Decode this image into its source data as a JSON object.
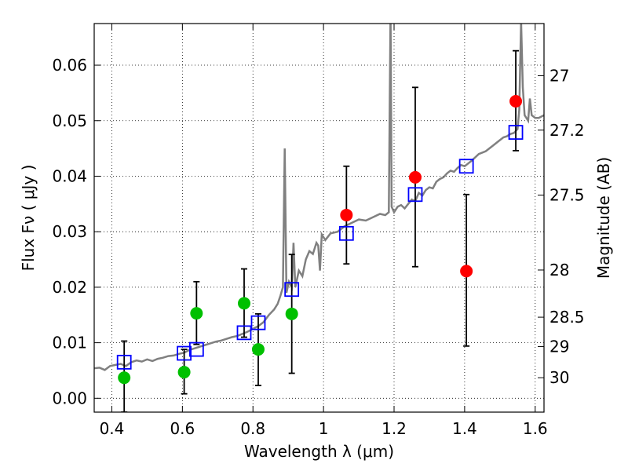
{
  "chart_data": {
    "type": "scatter",
    "xlabel": "Wavelength  λ (μm)",
    "ylabel_left": "Flux  Fν  ( μJy )",
    "ylabel_right": "Magnitude (AB)",
    "xlim": [
      0.35,
      1.625
    ],
    "ylim": [
      -0.0025,
      0.0675
    ],
    "x_ticks": [
      0.4,
      0.6,
      0.8,
      1.0,
      1.2,
      1.4,
      1.6
    ],
    "x_tick_labels": [
      "0.4",
      "0.6",
      "0.8",
      "1",
      "1.2",
      "1.4",
      "1.6"
    ],
    "y_ticks": [
      0.0,
      0.01,
      0.02,
      0.03,
      0.04,
      0.05,
      0.06
    ],
    "y_tick_labels": [
      "0.00",
      "0.01",
      "0.02",
      "0.03",
      "0.04",
      "0.05",
      "0.06"
    ],
    "right_axis_ticks": [
      {
        "label": "27",
        "flux": 0.0581
      },
      {
        "label": "27.2",
        "flux": 0.0483
      },
      {
        "label": "27.5",
        "flux": 0.0366
      },
      {
        "label": "28",
        "flux": 0.0231
      },
      {
        "label": "28.5",
        "flux": 0.0146
      },
      {
        "label": "29",
        "flux": 0.0093
      },
      {
        "label": "30",
        "flux": 0.0037
      }
    ],
    "grid": true,
    "colors": {
      "detection": "#ff0000",
      "upper": "#00c000",
      "model": "#0000ff",
      "sed": "#808080"
    },
    "series": [
      {
        "marker": "circle",
        "color": "#ff0000",
        "points": [
          {
            "x": 1.065,
            "y": 0.033,
            "err_low": 0.0242,
            "err_high": 0.0418
          },
          {
            "x": 1.26,
            "y": 0.0398,
            "err_low": 0.0237,
            "err_high": 0.056
          },
          {
            "x": 1.405,
            "y": 0.0229,
            "err_low": 0.0094,
            "err_high": 0.0367
          },
          {
            "x": 1.545,
            "y": 0.0535,
            "err_low": 0.0446,
            "err_high": 0.0626
          }
        ]
      },
      {
        "marker": "circle",
        "color": "#00c000",
        "points": [
          {
            "x": 0.435,
            "y": 0.0037,
            "err_low": -0.0025,
            "err_high": 0.0103
          },
          {
            "x": 0.605,
            "y": 0.0047,
            "err_low": 0.0008,
            "err_high": 0.0088
          },
          {
            "x": 0.64,
            "y": 0.0153,
            "err_low": 0.0097,
            "err_high": 0.021
          },
          {
            "x": 0.775,
            "y": 0.0171,
            "err_low": 0.011,
            "err_high": 0.0233
          },
          {
            "x": 0.815,
            "y": 0.0088,
            "err_low": 0.0023,
            "err_high": 0.0152
          },
          {
            "x": 0.91,
            "y": 0.0152,
            "err_low": 0.0045,
            "err_high": 0.0259
          }
        ]
      },
      {
        "marker": "square",
        "color": "#0000ff",
        "points": [
          {
            "x": 0.435,
            "y": 0.0065
          },
          {
            "x": 0.605,
            "y": 0.0081
          },
          {
            "x": 0.64,
            "y": 0.0088
          },
          {
            "x": 0.775,
            "y": 0.0118
          },
          {
            "x": 0.815,
            "y": 0.0136
          },
          {
            "x": 0.91,
            "y": 0.0196
          },
          {
            "x": 1.065,
            "y": 0.0297
          },
          {
            "x": 1.26,
            "y": 0.0367
          },
          {
            "x": 1.405,
            "y": 0.0418
          },
          {
            "x": 1.545,
            "y": 0.0479
          }
        ]
      },
      {
        "type": "line",
        "color": "#808080",
        "points": [
          [
            0.35,
            0.0054
          ],
          [
            0.365,
            0.0055
          ],
          [
            0.38,
            0.0051
          ],
          [
            0.395,
            0.0058
          ],
          [
            0.41,
            0.006
          ],
          [
            0.425,
            0.0062
          ],
          [
            0.44,
            0.0058
          ],
          [
            0.455,
            0.0065
          ],
          [
            0.47,
            0.0068
          ],
          [
            0.485,
            0.0066
          ],
          [
            0.5,
            0.007
          ],
          [
            0.515,
            0.0067
          ],
          [
            0.53,
            0.0071
          ],
          [
            0.545,
            0.0073
          ],
          [
            0.56,
            0.0076
          ],
          [
            0.575,
            0.0077
          ],
          [
            0.59,
            0.008
          ],
          [
            0.605,
            0.0082
          ],
          [
            0.62,
            0.0087
          ],
          [
            0.635,
            0.009
          ],
          [
            0.65,
            0.0093
          ],
          [
            0.665,
            0.0096
          ],
          [
            0.68,
            0.0099
          ],
          [
            0.695,
            0.0102
          ],
          [
            0.71,
            0.0104
          ],
          [
            0.725,
            0.0107
          ],
          [
            0.74,
            0.011
          ],
          [
            0.755,
            0.0112
          ],
          [
            0.77,
            0.0116
          ],
          [
            0.785,
            0.012
          ],
          [
            0.8,
            0.0125
          ],
          [
            0.815,
            0.013
          ],
          [
            0.83,
            0.0137
          ],
          [
            0.845,
            0.015
          ],
          [
            0.86,
            0.016
          ],
          [
            0.87,
            0.017
          ],
          [
            0.878,
            0.0185
          ],
          [
            0.885,
            0.02
          ],
          [
            0.89,
            0.045
          ],
          [
            0.895,
            0.019
          ],
          [
            0.902,
            0.021
          ],
          [
            0.91,
            0.02
          ],
          [
            0.915,
            0.028
          ],
          [
            0.92,
            0.02
          ],
          [
            0.93,
            0.023
          ],
          [
            0.94,
            0.022
          ],
          [
            0.95,
            0.025
          ],
          [
            0.96,
            0.0265
          ],
          [
            0.97,
            0.026
          ],
          [
            0.98,
            0.028
          ],
          [
            0.985,
            0.0275
          ],
          [
            0.99,
            0.023
          ],
          [
            0.995,
            0.0295
          ],
          [
            1.005,
            0.0285
          ],
          [
            1.02,
            0.0297
          ],
          [
            1.04,
            0.03
          ],
          [
            1.06,
            0.031
          ],
          [
            1.08,
            0.0316
          ],
          [
            1.1,
            0.0322
          ],
          [
            1.12,
            0.032
          ],
          [
            1.14,
            0.0326
          ],
          [
            1.16,
            0.0332
          ],
          [
            1.175,
            0.033
          ],
          [
            1.185,
            0.0335
          ],
          [
            1.19,
            0.07
          ],
          [
            1.193,
            0.0345
          ],
          [
            1.2,
            0.0335
          ],
          [
            1.21,
            0.0345
          ],
          [
            1.22,
            0.0348
          ],
          [
            1.23,
            0.0342
          ],
          [
            1.24,
            0.035
          ],
          [
            1.25,
            0.0358
          ],
          [
            1.26,
            0.0355
          ],
          [
            1.27,
            0.037
          ],
          [
            1.28,
            0.0365
          ],
          [
            1.29,
            0.0375
          ],
          [
            1.3,
            0.038
          ],
          [
            1.31,
            0.0378
          ],
          [
            1.32,
            0.039
          ],
          [
            1.33,
            0.0395
          ],
          [
            1.34,
            0.0398
          ],
          [
            1.35,
            0.0405
          ],
          [
            1.36,
            0.041
          ],
          [
            1.37,
            0.0408
          ],
          [
            1.38,
            0.0415
          ],
          [
            1.39,
            0.042
          ],
          [
            1.4,
            0.0418
          ],
          [
            1.42,
            0.0428
          ],
          [
            1.44,
            0.044
          ],
          [
            1.46,
            0.0445
          ],
          [
            1.48,
            0.0455
          ],
          [
            1.5,
            0.0465
          ],
          [
            1.51,
            0.047
          ],
          [
            1.52,
            0.0472
          ],
          [
            1.53,
            0.0476
          ],
          [
            1.54,
            0.0478
          ],
          [
            1.55,
            0.0485
          ],
          [
            1.555,
            0.052
          ],
          [
            1.56,
            0.068
          ],
          [
            1.565,
            0.056
          ],
          [
            1.57,
            0.051
          ],
          [
            1.58,
            0.05
          ],
          [
            1.585,
            0.054
          ],
          [
            1.59,
            0.051
          ],
          [
            1.6,
            0.0505
          ],
          [
            1.61,
            0.0505
          ],
          [
            1.625,
            0.051
          ]
        ]
      }
    ]
  }
}
